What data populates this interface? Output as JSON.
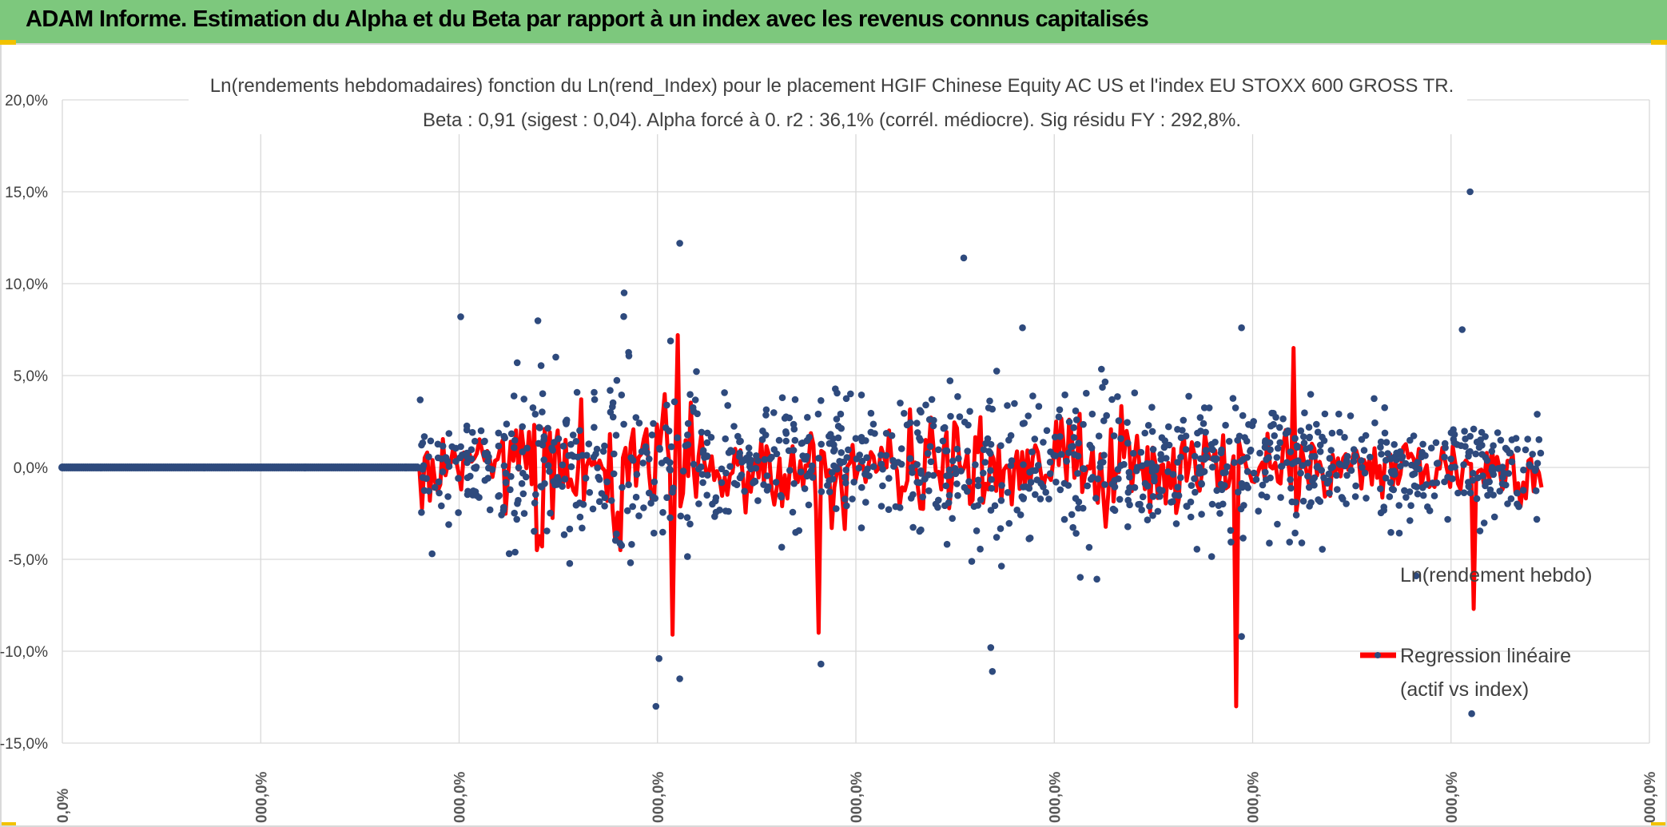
{
  "banner": {
    "title": "ADAM Informe. Estimation du Alpha et du Beta par rapport à un index avec les revenus connus capitalisés",
    "background_color": "#7dc87d",
    "corner_color": "#f2c200"
  },
  "chart_data": {
    "type": "scatter",
    "title_line1": "Ln(rendements hebdomadaires) fonction du Ln(rend_Index) pour le placement HGIF Chinese Equity AC US et l'index EU STOXX 600 GROSS TR.",
    "title_line2": "Beta : 0,91 (sigest : 0,04). Alpha forcé à 0. r2 : 36,1% (corrél. médiocre). Sig résidu FY : 292,8%.",
    "y_ticks": [
      "20,0%",
      "15,0%",
      "10,0%",
      "5,0%",
      "0,0%",
      "-5,0%",
      "-10,0%",
      "-15,0%"
    ],
    "y_tick_values": [
      20,
      15,
      10,
      5,
      0,
      -5,
      -10,
      -15
    ],
    "ylim": [
      -15,
      20
    ],
    "x_ticks": [
      "0,0%",
      "000,0%",
      "000,0%",
      "000,0%",
      "000,0%",
      "000,0%",
      "000,0%",
      "000,0%",
      "000,0%"
    ],
    "grid": true,
    "legend_position": "right",
    "series": [
      {
        "name": "Ln(rendement hebdo)",
        "kind": "markers",
        "color": "#2e4a7d",
        "flat_zero_run": true,
        "notable_points": [
          {
            "x_frac": 0.853,
            "y": -5.9
          },
          {
            "x_frac": 0.0,
            "y": 0
          },
          {
            "x_frac": 0.887,
            "y": 15.0
          },
          {
            "x_frac": 0.389,
            "y": 12.2
          },
          {
            "x_frac": 0.568,
            "y": 11.4
          },
          {
            "x_frac": 0.354,
            "y": 9.5
          },
          {
            "x_frac": 0.251,
            "y": 8.2
          },
          {
            "x_frac": 0.882,
            "y": 7.5
          },
          {
            "x_frac": 0.743,
            "y": 7.6
          },
          {
            "x_frac": 0.605,
            "y": 7.6
          },
          {
            "x_frac": 0.374,
            "y": -13.0
          },
          {
            "x_frac": 0.888,
            "y": -13.4
          },
          {
            "x_frac": 0.389,
            "y": -11.5
          },
          {
            "x_frac": 0.586,
            "y": -11.1
          },
          {
            "x_frac": 0.478,
            "y": -10.7
          },
          {
            "x_frac": 0.376,
            "y": -10.4
          },
          {
            "x_frac": 0.585,
            "y": -9.8
          },
          {
            "x_frac": 0.743,
            "y": -9.2
          }
        ]
      },
      {
        "name": "Regression linéaire (actif vs index)",
        "legend_line1": "Regression linéaire",
        "legend_line2": "(actif vs index)",
        "kind": "line",
        "color": "#ff0000",
        "extremes": [
          {
            "x_frac": 0.74,
            "y": -13.0
          },
          {
            "x_frac": 0.388,
            "y": 7.2
          },
          {
            "x_frac": 0.775,
            "y": 6.5
          },
          {
            "x_frac": 0.476,
            "y": -9.0
          },
          {
            "x_frac": 0.385,
            "y": -9.1
          },
          {
            "x_frac": 0.89,
            "y": -7.7
          }
        ]
      }
    ]
  }
}
